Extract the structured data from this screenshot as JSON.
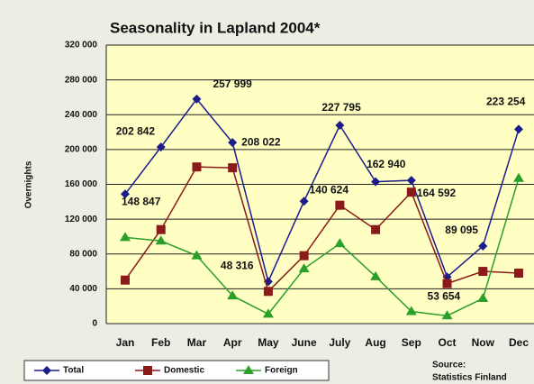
{
  "chart_data": {
    "type": "line",
    "title": "Seasonality in Lapland 2004*",
    "y_label": "Overnights",
    "source": "Source:",
    "source_detail": "Statistics Finland",
    "categories": [
      "Jan",
      "Feb",
      "Mar",
      "Apr",
      "May",
      "June",
      "July",
      "Aug",
      "Sep",
      "Oct",
      "Now",
      "Dec"
    ],
    "series": [
      {
        "name": "Total",
        "color": "#1c1c8c",
        "marker": "diamond",
        "values": [
          148847,
          202842,
          257999,
          208022,
          48316,
          140624,
          227795,
          162940,
          164592,
          53654,
          89095,
          223254
        ],
        "value_labels": [
          "148 847",
          "202 842",
          "257 999",
          "208 022",
          "48 316",
          "140 624",
          "227 795",
          "162 940",
          "164 592",
          "53 654",
          "89 095",
          "223 254"
        ]
      },
      {
        "name": "Domestic",
        "color": "#8b1a1a",
        "marker": "square",
        "values": [
          50000,
          108000,
          180000,
          179000,
          37000,
          78000,
          136000,
          108000,
          151000,
          46000,
          60000,
          58000
        ]
      },
      {
        "name": "Foreign",
        "color": "#2aa02a",
        "marker": "triangle",
        "values": [
          99000,
          95000,
          78000,
          32000,
          11000,
          63000,
          92000,
          54000,
          14000,
          9000,
          29000,
          167000
        ]
      }
    ],
    "ylim": [
      0,
      320000
    ],
    "yticks": [
      0,
      {
        "value": 40000,
        "label": "40 000"
      },
      {
        "value": 80000,
        "label": "80 000"
      },
      {
        "value": 120000,
        "label": "120 000"
      },
      {
        "value": 160000,
        "label": "160 000"
      },
      {
        "value": 200000,
        "label": "200 000"
      },
      {
        "value": 240000,
        "label": "240 000"
      },
      {
        "value": 280000,
        "label": "280 000"
      },
      {
        "value": 320000,
        "label": "320 000"
      }
    ],
    "grid": true,
    "legend": "bottom-left"
  }
}
